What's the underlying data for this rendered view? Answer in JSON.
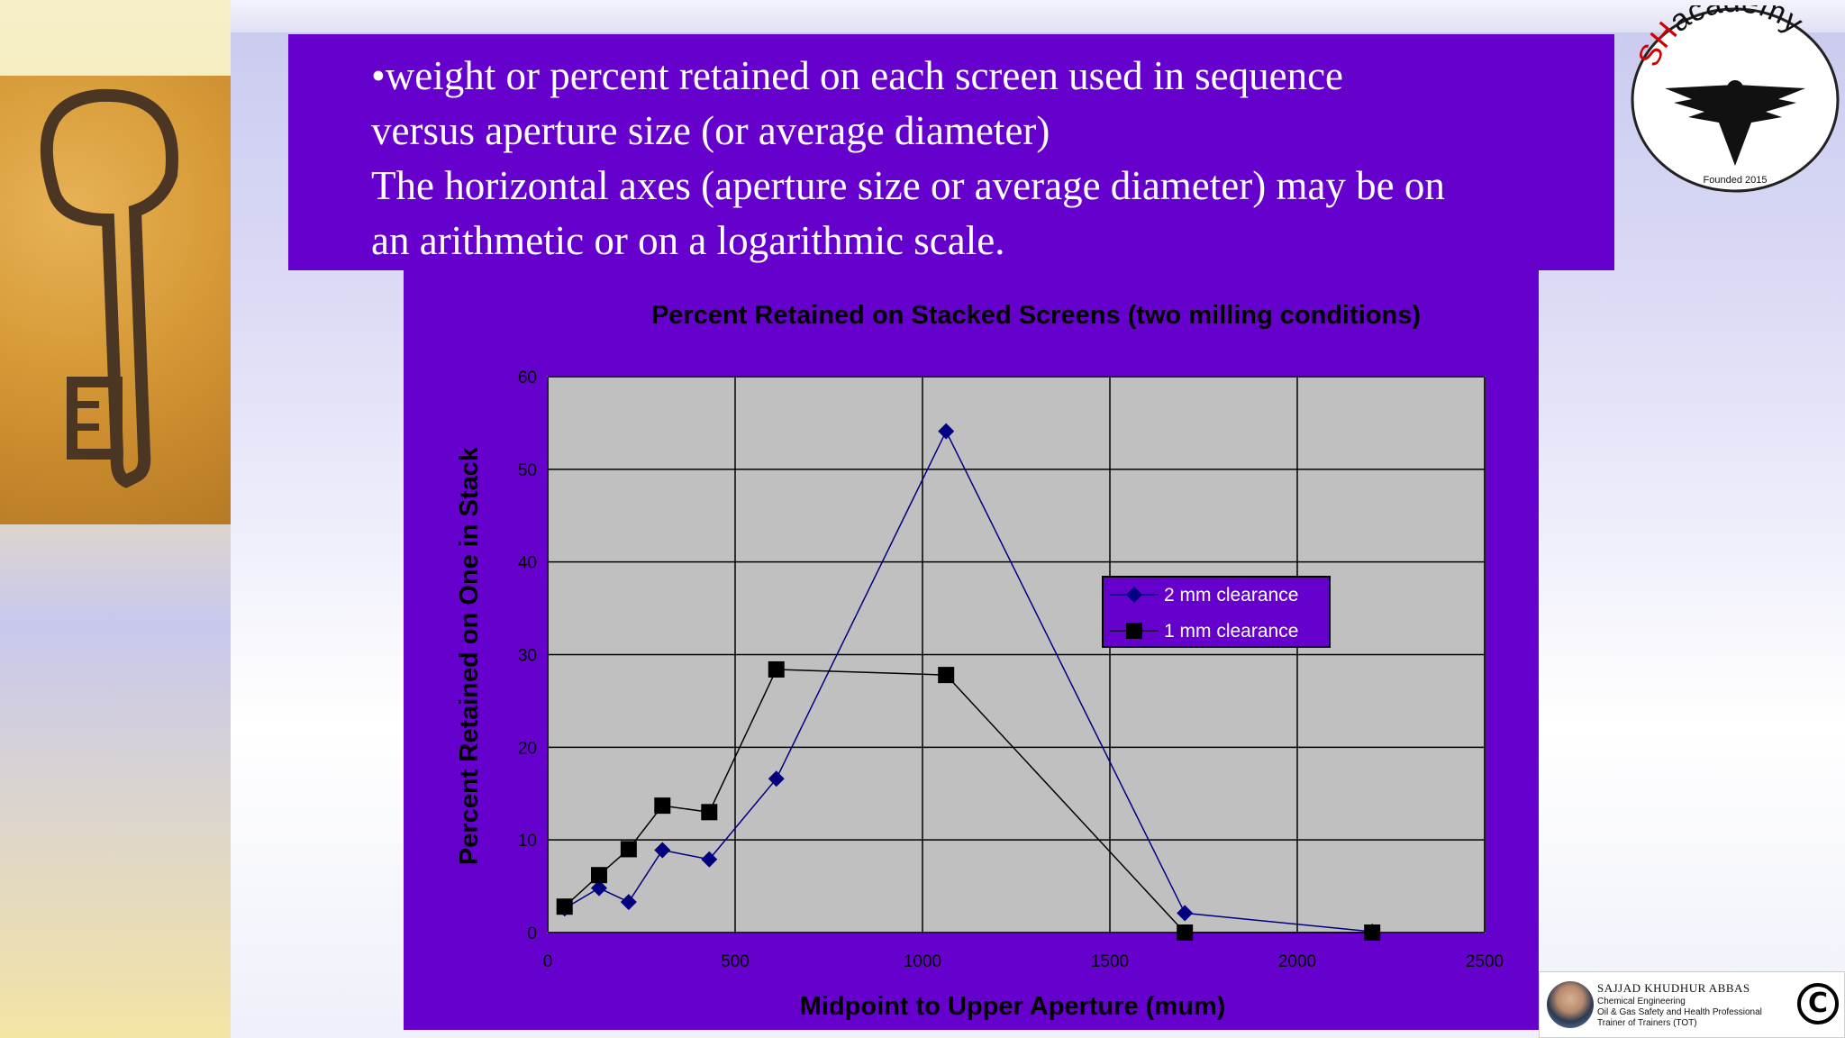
{
  "slide": {
    "paragraphs": [
      "•weight or percent retained on each screen used in sequence",
      "versus aperture size (or average diameter)",
      "The horizontal axes (aperture size or average diameter) may be on",
      "an arithmetic or on a logarithmic scale."
    ]
  },
  "logo": {
    "brand": "SHacademy",
    "founded": "Founded 2015"
  },
  "credit": {
    "name": "SAJJAD KHUDHUR ABBAS",
    "lines": [
      "Chemical Engineering",
      "Oil & Gas Safety and Health Professional",
      "Trainer of Trainers (TOT)"
    ],
    "copyright_symbol": "C"
  },
  "chart_data": {
    "type": "line",
    "title": "Percent Retained on Stacked Screens (two milling conditions)",
    "xlabel": "Midpoint to Upper Aperture (mum)",
    "ylabel": "Percent Retained on One in Stack",
    "xlim": [
      0,
      2500
    ],
    "ylim": [
      0,
      60
    ],
    "xticks": [
      0,
      500,
      1000,
      1500,
      2000,
      2500
    ],
    "yticks": [
      0,
      10,
      20,
      30,
      40,
      50,
      60
    ],
    "grid": true,
    "legend_position": "center-right",
    "plot_background": "#c0c0c0",
    "series": [
      {
        "name": "2 mm clearance",
        "marker": "diamond",
        "color": "#000080",
        "points": [
          [
            45,
            2.6
          ],
          [
            137,
            4.8
          ],
          [
            216,
            3.3
          ],
          [
            306,
            8.9
          ],
          [
            431,
            7.9
          ],
          [
            610,
            16.6
          ],
          [
            1063,
            54.1
          ],
          [
            1700,
            2.1
          ],
          [
            2200,
            0.1
          ]
        ]
      },
      {
        "name": "1 mm clearance",
        "marker": "square",
        "color": "#000000",
        "points": [
          [
            45,
            2.8
          ],
          [
            137,
            6.2
          ],
          [
            216,
            9.0
          ],
          [
            306,
            13.7
          ],
          [
            431,
            13.0
          ],
          [
            610,
            28.4
          ],
          [
            1063,
            27.8
          ],
          [
            1700,
            0.0
          ],
          [
            2200,
            0.0
          ]
        ]
      }
    ]
  }
}
